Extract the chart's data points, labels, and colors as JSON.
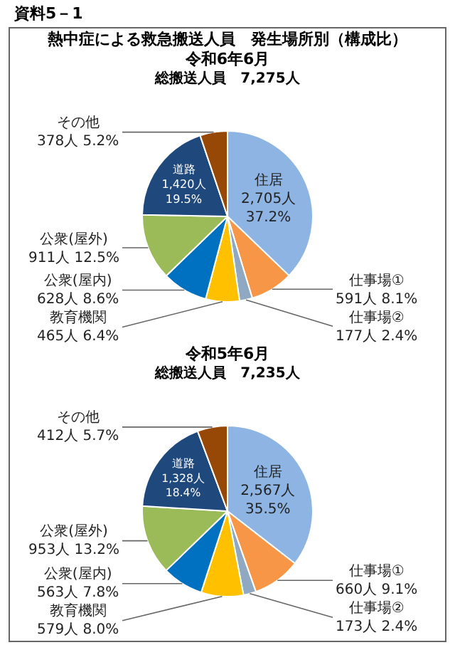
{
  "chart_data": [
    {
      "type": "pie",
      "title": "熱中症による救急搬送人員　発生場所別（構成比）",
      "subtitle": "令和6年6月",
      "annotations": [
        "資料5－1",
        "総搬送人員　7,275人"
      ],
      "categories": [
        "住居",
        "仕事場①",
        "仕事場②",
        "教育機関",
        "公衆(屋内)",
        "公衆(屋外)",
        "道路",
        "その他"
      ],
      "values": [
        2705,
        591,
        177,
        465,
        628,
        911,
        1420,
        378
      ],
      "value_labels": [
        "2,705人\n37.2%",
        "591人\n8.1%",
        "177人\n2.4%",
        "465人\n6.4%",
        "628人\n8.6%",
        "911人\n12.5%",
        "1,420人\n19.5%",
        "378人\n5.2%"
      ],
      "colors": [
        "#8db4e2",
        "#f79646",
        "#8ea9c1",
        "#ffc000",
        "#0070c0",
        "#9bbb59",
        "#1f497d",
        "#974706"
      ],
      "legend": false
    },
    {
      "type": "pie",
      "subtitle": "令和5年6月",
      "annotations": [
        "総搬送人員　7,235人"
      ],
      "categories": [
        "住居",
        "仕事場①",
        "仕事場②",
        "教育機関",
        "公衆(屋内)",
        "公衆(屋外)",
        "道路",
        "その他"
      ],
      "values": [
        2567,
        660,
        173,
        579,
        563,
        953,
        1328,
        412
      ],
      "value_labels": [
        "2,567人\n35.5%",
        "660人\n9.1%",
        "173人\n2.4%",
        "579人\n8.0%",
        "563人\n7.8%",
        "953人\n13.2%",
        "1,328人\n18.4%",
        "412人\n5.7%"
      ],
      "colors": [
        "#8db4e2",
        "#f79646",
        "#8ea9c1",
        "#ffc000",
        "#0070c0",
        "#9bbb59",
        "#1f497d",
        "#974706"
      ],
      "legend": false
    }
  ]
}
